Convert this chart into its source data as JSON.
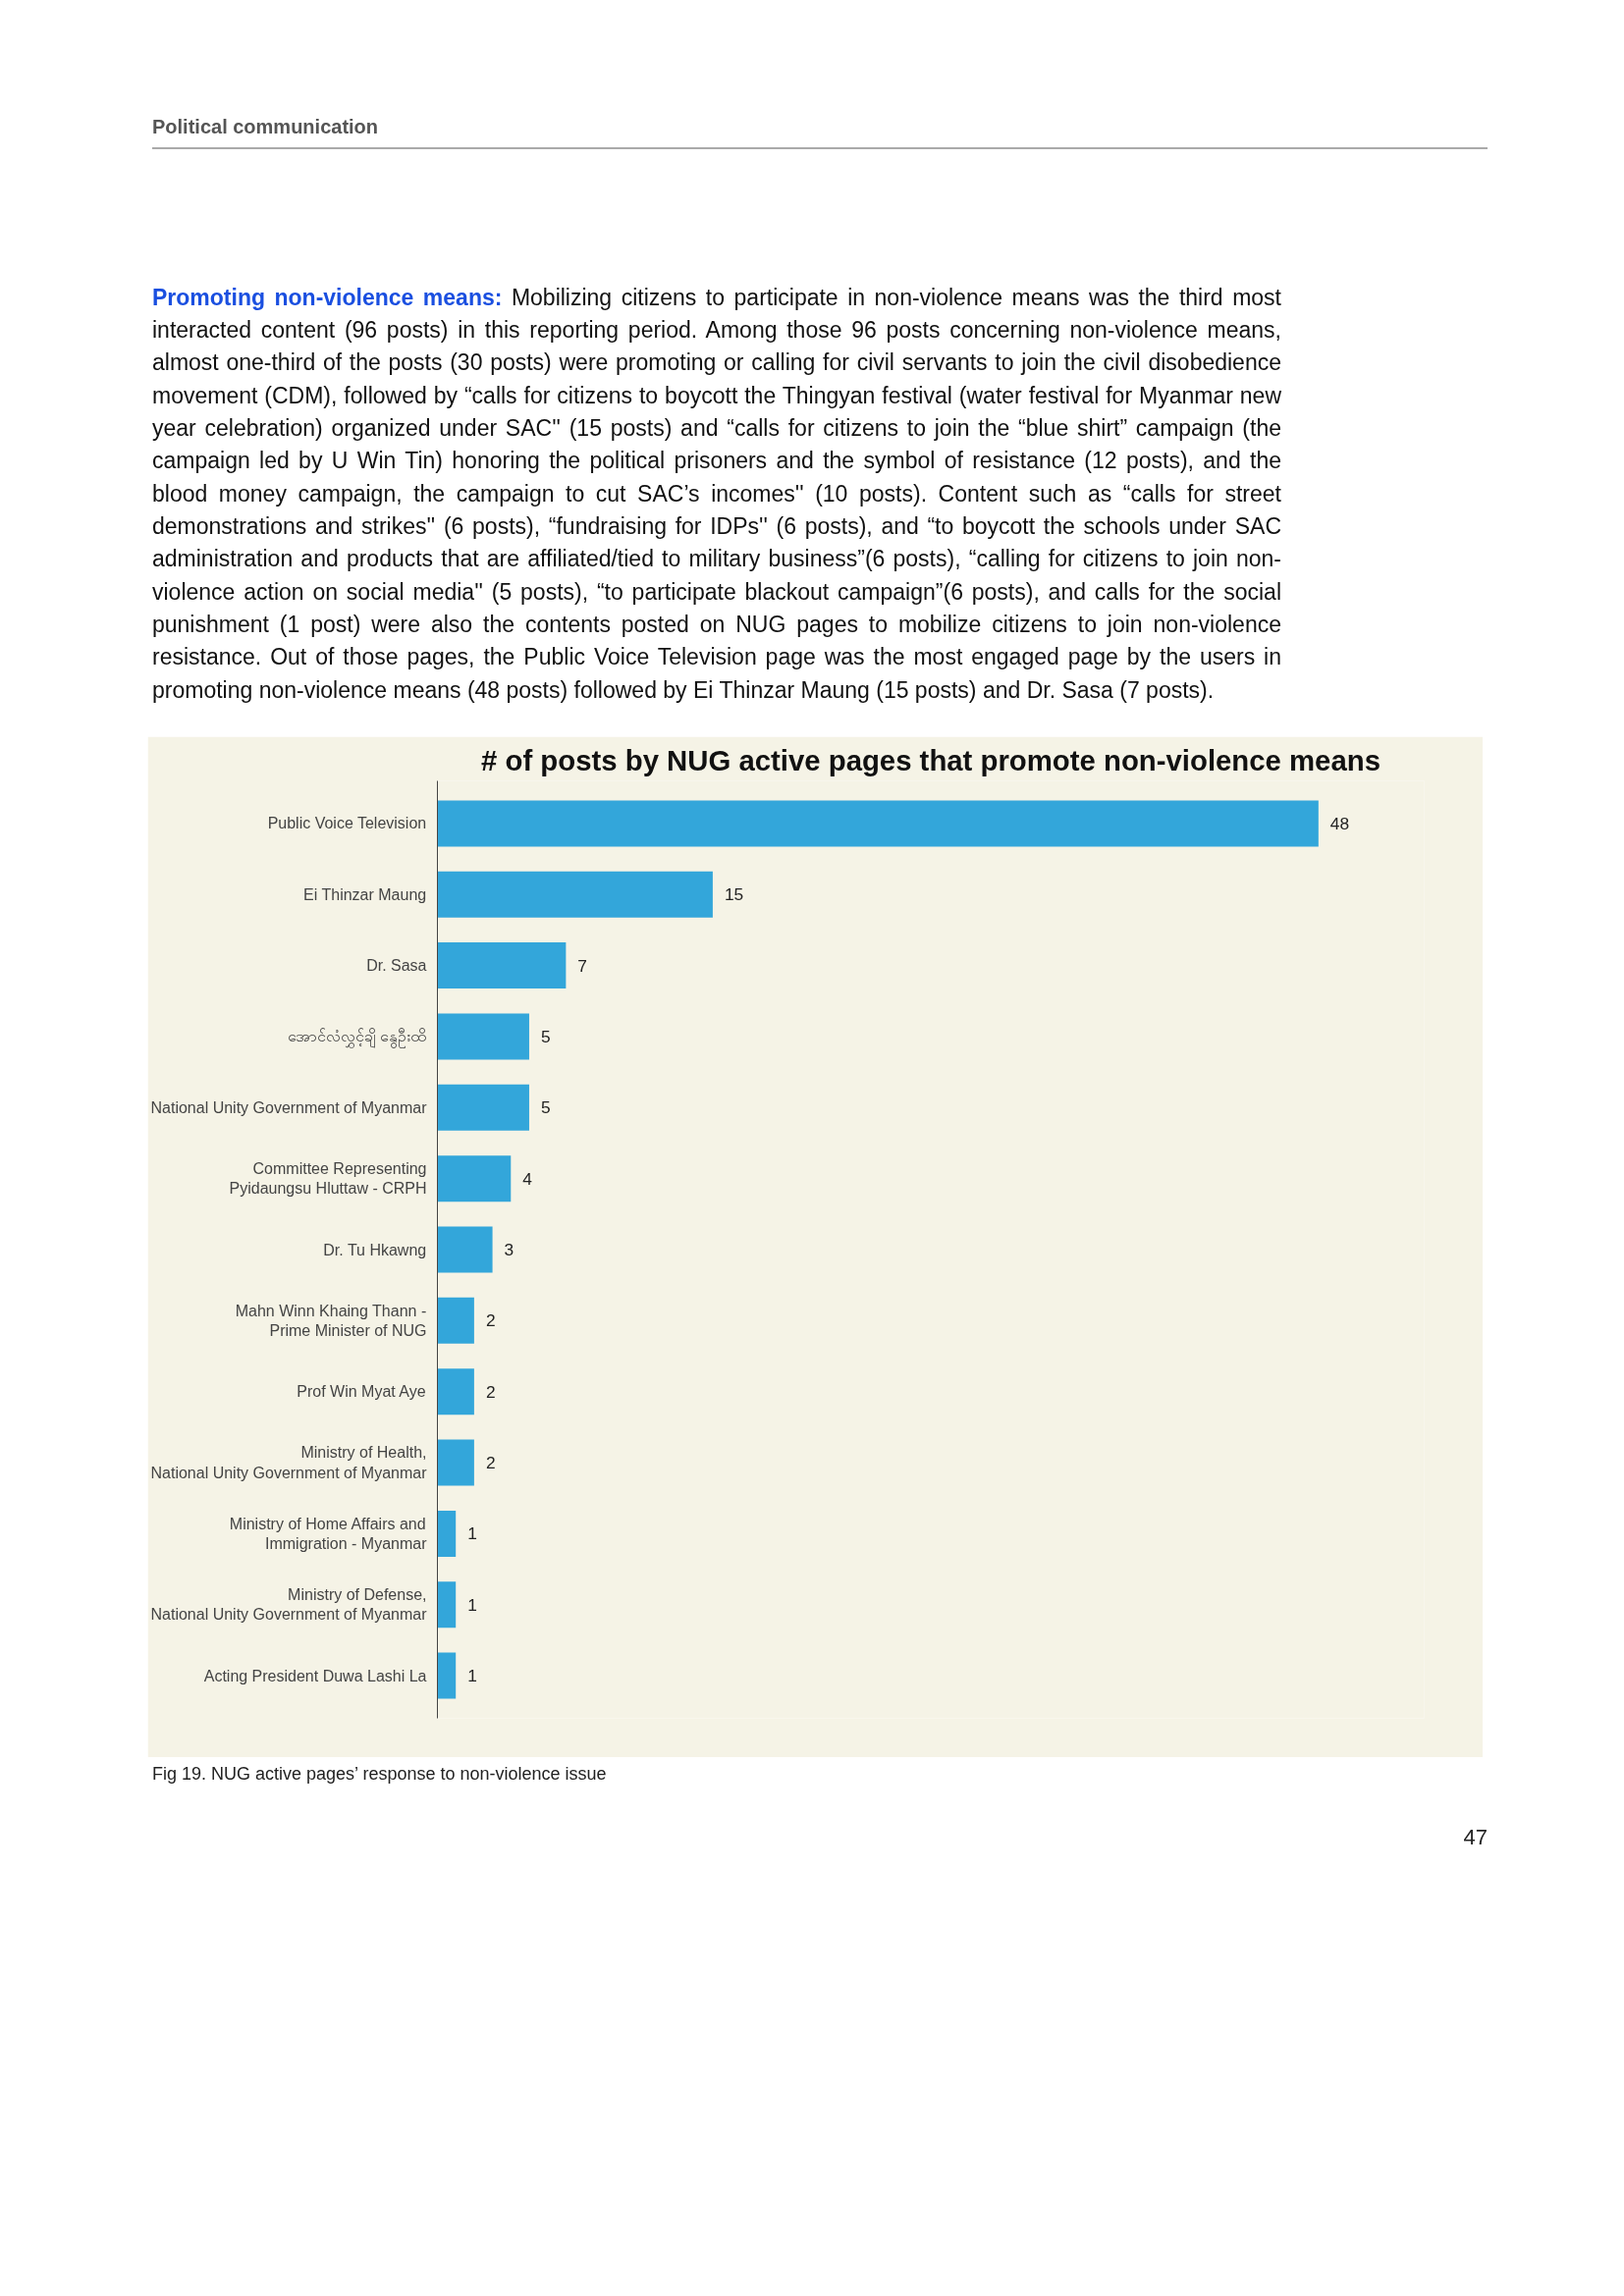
{
  "chart_data": {
    "type": "bar",
    "orientation": "horizontal",
    "tick_labels": "y",
    "data_labels": true,
    "title": "# of posts by NUG active pages that promote non-violence means",
    "categories": [
      "Public Voice Television",
      "Ei Thinzar Maung",
      "Dr. Sasa",
      "အောင်လံလွှင့်ချိ နွေဦးထိ",
      "National Unity Government of Myanmar",
      "Committee Representing\nPyidaungsu Hluttaw - CRPH",
      "Dr. Tu Hkawng",
      "Mahn Winn Khaing Thann -\nPrime Minister of NUG",
      "Prof Win Myat Aye",
      "Ministry of Health,\nNational Unity Government of Myanmar",
      "Ministry of Home Affairs and\nImmigration - Myanmar",
      "Ministry of Defense,\nNational Unity Government of Myanmar",
      "Acting President Duwa Lashi La"
    ],
    "values": [
      48,
      15,
      7,
      5,
      5,
      4,
      3,
      2,
      2,
      2,
      1,
      1,
      1
    ],
    "color": "#33a6da",
    "annotations": [
      "Political communication",
      "Promoting non-violence means:",
      "Mobilizing citizens to participate in non-violence means was the third most interacted content (96 posts) in this reporting period. Among those 96 posts concerning non-violence means, almost one-third of the posts (30 posts) were promoting or calling for civil servants to join the civil disobedience movement (CDM), followed by “calls for citizens to boycott the Thingyan festival (water festival for Myanmar new year celebration) organized under SAC'' (15 posts) and “calls for citizens to join the “blue shirt” campaign (the campaign led by U Win Tin) honoring the political prisoners and the symbol of resistance (12 posts), and the blood money campaign, the campaign to cut SAC’s incomes'' (10 posts). Content such as “calls for street demonstrations and strikes'' (6 posts), “fundraising for IDPs'' (6 posts), and “to boycott the schools under SAC administration and products that are affiliated/tied to military business”(6 posts), “calling for citizens to join non-violence action on social media'' (5 posts), “to participate blackout campaign”(6 posts), and calls for the social punishment (1 post) were also the contents posted on NUG pages to mobilize citizens to join non-violence resistance. Out of those pages, the Public Voice Television page was the most engaged page by the users in promoting non-violence means (48 posts) followed by Ei Thinzar Maung (15 posts) and Dr. Sasa (7 posts).",
      "Fig 19. NUG active pages’ response to non-violence issue",
      "47"
    ]
  }
}
